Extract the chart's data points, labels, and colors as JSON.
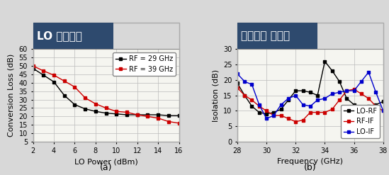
{
  "title_a": "LO 변환손실",
  "title_b": "혼합기의 격리도",
  "label_a": "(a)",
  "label_b": "(b)",
  "xlabel_a": "LO Power (dBm)",
  "ylabel_a": "Conversion Loss (dB)",
  "xlabel_b": "Frequency (GHz)",
  "ylabel_b": "Isolation (dB)",
  "xlim_a": [
    2,
    16
  ],
  "ylim_a": [
    5,
    60
  ],
  "xlim_b": [
    28,
    38
  ],
  "ylim_b": [
    0,
    30
  ],
  "xticks_a": [
    2,
    4,
    6,
    8,
    10,
    12,
    14,
    16
  ],
  "yticks_a": [
    5,
    10,
    15,
    20,
    25,
    30,
    35,
    40,
    45,
    50,
    55,
    60
  ],
  "xticks_b": [
    28,
    30,
    32,
    34,
    36,
    38
  ],
  "yticks_b": [
    0,
    5,
    10,
    15,
    20,
    25,
    30
  ],
  "legend_a": [
    "RF = 29 GHz",
    "RF = 39 GHz"
  ],
  "legend_b": [
    "LO-RF",
    "RF-IF",
    "LO-IF"
  ],
  "color_29": "#000000",
  "color_39": "#cc0000",
  "color_lorf": "#000000",
  "color_rfif": "#cc0000",
  "color_loif": "#0000cc",
  "marker_sq": "s",
  "lo_power_x": [
    2,
    3,
    4,
    5,
    6,
    7,
    8,
    9,
    10,
    11,
    12,
    13,
    14,
    15,
    16
  ],
  "cl_29": [
    48.5,
    44.5,
    40.5,
    32.5,
    27.0,
    24.5,
    23.0,
    22.0,
    21.5,
    21.0,
    21.0,
    21.0,
    21.0,
    20.5,
    20.5
  ],
  "cl_39": [
    50.0,
    47.0,
    44.5,
    41.0,
    37.5,
    31.0,
    27.5,
    25.0,
    23.0,
    22.5,
    21.0,
    20.0,
    19.0,
    17.0,
    16.0
  ],
  "freq_x": [
    28.0,
    28.5,
    29.0,
    29.5,
    30.0,
    30.5,
    31.0,
    31.5,
    32.0,
    32.5,
    33.0,
    33.5,
    34.0,
    34.5,
    35.0,
    35.5,
    36.0,
    36.5,
    37.0,
    37.5,
    38.0
  ],
  "lorf_y": [
    19.0,
    15.0,
    11.5,
    9.5,
    9.0,
    9.5,
    10.5,
    13.5,
    16.5,
    16.5,
    16.0,
    15.0,
    26.0,
    23.0,
    19.5,
    14.0,
    12.0,
    11.0,
    11.5,
    12.0,
    13.0
  ],
  "rfif_y": [
    17.5,
    15.0,
    13.5,
    11.5,
    10.0,
    8.5,
    8.5,
    7.5,
    6.5,
    7.0,
    9.5,
    9.5,
    9.5,
    10.5,
    13.5,
    16.5,
    17.0,
    15.5,
    14.0,
    11.5,
    10.0
  ],
  "loif_y": [
    22.0,
    19.5,
    18.5,
    12.0,
    7.5,
    8.5,
    12.0,
    14.0,
    15.0,
    12.0,
    11.5,
    13.5,
    14.0,
    15.5,
    16.0,
    16.5,
    16.5,
    19.5,
    22.5,
    16.0,
    10.0
  ],
  "title_fontsize": 11,
  "axis_fontsize": 8,
  "tick_fontsize": 7,
  "legend_fontsize": 7,
  "bg_color": "#d8d8d8",
  "plot_bg": "#f5f5f0",
  "title_bg": "#2e4a6e",
  "title_fg": "#ffffff",
  "border_color": "#aaaaaa"
}
